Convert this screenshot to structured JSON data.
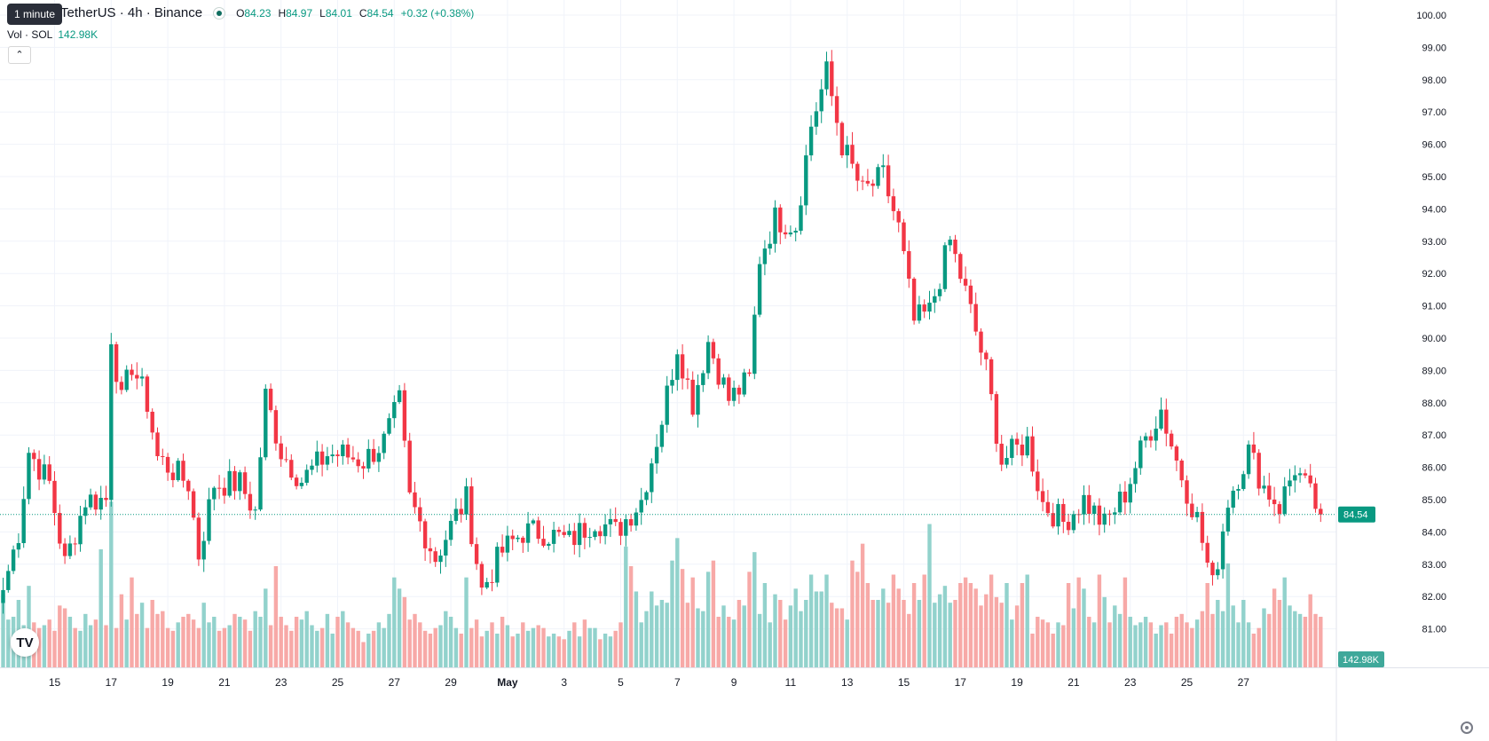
{
  "legend": {
    "tooltip": "1 minute",
    "symbol": "TetherUS · 4h · Binance",
    "ohlc": {
      "o_label": "O",
      "o": "84.23",
      "h_label": "H",
      "h": "84.97",
      "l_label": "L",
      "l": "84.01",
      "c_label": "C",
      "c": "84.54",
      "change": "+0.32 (+0.38%)"
    },
    "volume_label": "Vol · SOL",
    "volume_value": "142.98K",
    "collapse_icon": "chevron-up-icon"
  },
  "price_badge": "84.54",
  "volume_badge": "142.98K",
  "colors": {
    "up": "#089981",
    "down": "#f23645",
    "up_vol": "#92d2cc",
    "down_vol": "#f7a9a7"
  },
  "icons": {
    "logo": "tradingview-logo",
    "settings": "gear-icon"
  },
  "chart_data": {
    "type": "candlestick",
    "ylim": [
      80.5,
      100.3
    ],
    "y_ticks": [
      "81.00",
      "82.00",
      "83.00",
      "84.00",
      "85.00",
      "86.00",
      "87.00",
      "88.00",
      "89.00",
      "90.00",
      "91.00",
      "92.00",
      "93.00",
      "94.00",
      "95.00",
      "96.00",
      "97.00",
      "98.00",
      "99.00",
      "100.00"
    ],
    "x_ticks": [
      "15",
      "17",
      "19",
      "21",
      "23",
      "25",
      "27",
      "29",
      "May",
      "3",
      "5",
      "7",
      "9",
      "11",
      "13",
      "15",
      "17",
      "19",
      "21",
      "23",
      "25",
      "27"
    ],
    "x_tick_bar_index": [
      10,
      21,
      32,
      43,
      54,
      65,
      76,
      87,
      98,
      109,
      120,
      131,
      142,
      153,
      164,
      175,
      186,
      197,
      208,
      219,
      230,
      241
    ],
    "bars_per_day": 5.5,
    "last_price": 84.54,
    "key_points": [
      [
        0,
        82.2
      ],
      [
        3,
        84.0
      ],
      [
        5,
        86.5
      ],
      [
        9,
        85.5
      ],
      [
        12,
        83.0
      ],
      [
        16,
        85.0
      ],
      [
        20,
        85.0
      ],
      [
        21,
        90.1
      ],
      [
        23,
        88.0
      ],
      [
        25,
        89.2
      ],
      [
        28,
        88.0
      ],
      [
        30,
        86.3
      ],
      [
        36,
        85.5
      ],
      [
        38,
        83.3
      ],
      [
        41,
        85.5
      ],
      [
        46,
        85.5
      ],
      [
        49,
        84.6
      ],
      [
        51,
        88.2
      ],
      [
        54,
        86.5
      ],
      [
        58,
        85.6
      ],
      [
        63,
        86.4
      ],
      [
        66,
        86.4
      ],
      [
        70,
        86.2
      ],
      [
        74,
        86.8
      ],
      [
        77,
        88.0
      ],
      [
        79,
        85.0
      ],
      [
        84,
        83.2
      ],
      [
        88,
        84.5
      ],
      [
        90,
        85.0
      ],
      [
        93,
        82.2
      ],
      [
        97,
        83.4
      ],
      [
        101,
        84.0
      ],
      [
        105,
        84.0
      ],
      [
        110,
        83.7
      ],
      [
        115,
        84.4
      ],
      [
        119,
        84.0
      ],
      [
        124,
        85.0
      ],
      [
        128,
        87.5
      ],
      [
        131,
        89.8
      ],
      [
        134,
        88.0
      ],
      [
        137,
        89.9
      ],
      [
        141,
        88.1
      ],
      [
        145,
        88.7
      ],
      [
        147,
        92.5
      ],
      [
        150,
        93.7
      ],
      [
        154,
        93.5
      ],
      [
        157,
        96.6
      ],
      [
        160,
        98.2
      ],
      [
        163,
        96.0
      ],
      [
        167,
        94.5
      ],
      [
        171,
        95.0
      ],
      [
        174,
        93.4
      ],
      [
        177,
        90.5
      ],
      [
        180,
        90.8
      ],
      [
        184,
        93.0
      ],
      [
        187,
        91.4
      ],
      [
        191,
        89.0
      ],
      [
        194,
        86.2
      ],
      [
        199,
        86.8
      ],
      [
        202,
        84.9
      ],
      [
        206,
        84.3
      ],
      [
        210,
        85.0
      ],
      [
        214,
        84.2
      ],
      [
        218,
        85.2
      ],
      [
        222,
        86.9
      ],
      [
        225,
        87.8
      ],
      [
        228,
        86.2
      ],
      [
        232,
        84.4
      ],
      [
        235,
        82.3
      ],
      [
        238,
        85.0
      ],
      [
        242,
        86.5
      ],
      [
        245,
        85.4
      ],
      [
        248,
        84.8
      ],
      [
        251,
        86.0
      ],
      [
        254,
        85.1
      ],
      [
        256,
        84.54
      ]
    ],
    "volumes_sol_k": [
      130,
      85,
      90,
      120,
      75,
      145,
      80,
      70,
      75,
      85,
      65,
      110,
      105,
      90,
      70,
      65,
      95,
      75,
      85,
      210,
      75,
      295,
      70,
      130,
      85,
      160,
      95,
      115,
      70,
      120,
      95,
      100,
      70,
      65,
      80,
      90,
      95,
      85,
      70,
      115,
      80,
      90,
      65,
      70,
      75,
      95,
      90,
      85,
      65,
      100,
      90,
      140,
      75,
      180,
      90,
      75,
      65,
      90,
      85,
      100,
      75,
      65,
      70,
      95,
      60,
      90,
      100,
      80,
      70,
      65,
      45,
      60,
      65,
      80,
      70,
      95,
      160,
      140,
      125,
      85,
      95,
      80,
      65,
      60,
      70,
      75,
      100,
      90,
      70,
      60,
      160,
      70,
      85,
      55,
      65,
      80,
      60,
      90,
      75,
      55,
      60,
      80,
      65,
      70,
      75,
      70,
      55,
      60,
      55,
      50,
      65,
      80,
      55,
      85,
      70,
      70,
      50,
      60,
      55,
      65,
      80,
      215,
      180,
      135,
      80,
      100,
      135,
      110,
      120,
      115,
      190,
      230,
      175,
      115,
      160,
      105,
      100,
      170,
      190,
      90,
      110,
      90,
      85,
      120,
      110,
      170,
      205,
      95,
      150,
      80,
      130,
      120,
      85,
      110,
      140,
      100,
      120,
      165,
      135,
      135,
      165,
      115,
      105,
      105,
      85,
      190,
      170,
      220,
      150,
      120,
      120,
      140,
      115,
      165,
      140,
      120,
      95,
      150,
      120,
      165,
      255,
      115,
      130,
      145,
      115,
      120,
      150,
      160,
      150,
      140,
      110,
      130,
      165,
      125,
      115,
      150,
      85,
      110,
      150,
      165,
      60,
      90,
      85,
      80,
      60,
      80,
      75,
      150,
      105,
      160,
      140,
      90,
      80,
      165,
      125,
      80,
      110,
      95,
      160,
      90,
      75,
      80,
      90,
      80,
      60,
      75,
      80,
      60,
      90,
      95,
      80,
      70,
      85,
      100,
      150,
      95,
      120,
      100,
      185,
      110,
      80,
      120,
      80,
      60,
      70,
      105,
      95,
      140,
      120,
      160,
      110,
      100,
      95,
      90,
      130,
      95,
      90,
      85,
      80,
      60,
      90,
      95,
      110,
      85,
      100,
      95,
      85,
      65,
      60,
      70,
      35
    ],
    "volume_axis_label": "142.98K"
  }
}
